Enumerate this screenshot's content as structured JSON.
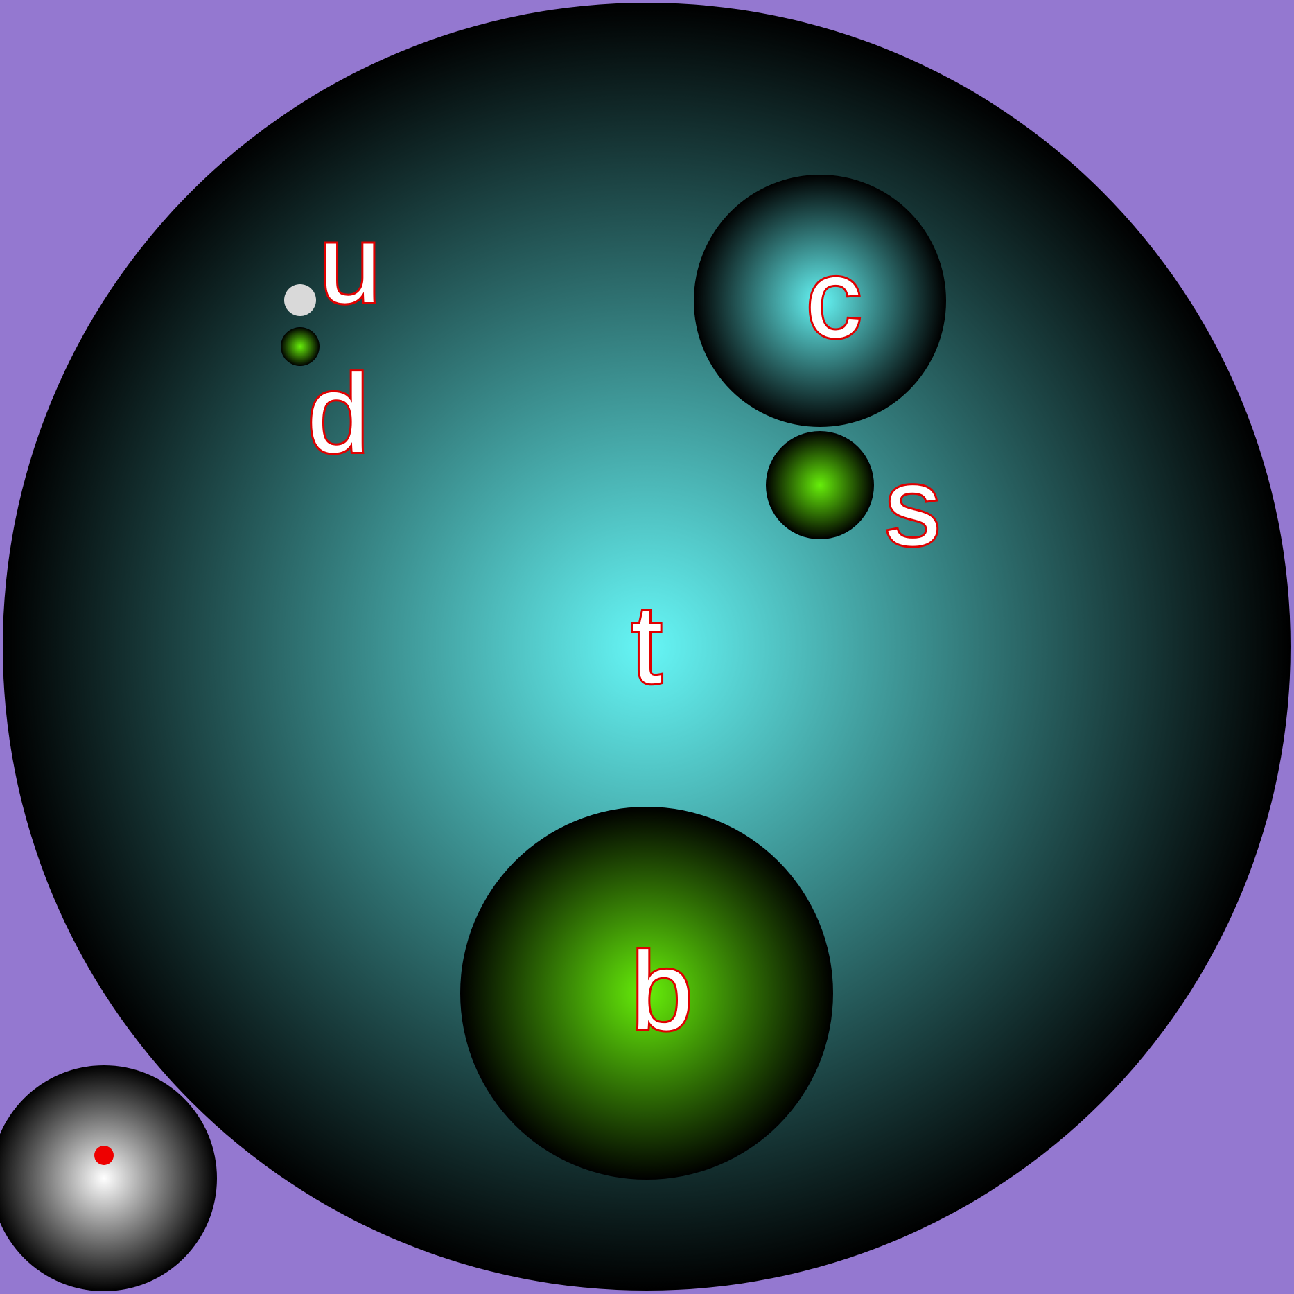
{
  "colors": {
    "background": "#9478d0",
    "cyan_center": "#66f6f6",
    "green_center": "#66ee0a",
    "white_center": "#ffffff",
    "gray_dot": "#d9d9d9",
    "label_fill": "#ffffff",
    "label_stroke": "#e00000",
    "marker": "#ee0000"
  },
  "labels": {
    "t": "t",
    "b": "b",
    "c": "c",
    "s": "s",
    "u": "u",
    "d": "d"
  }
}
